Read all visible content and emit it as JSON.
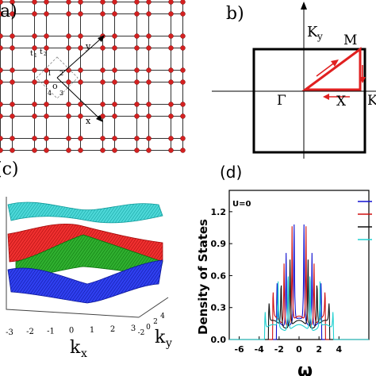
{
  "panel_a": {
    "label": "a)",
    "hopping_1": "t",
    "hopping_1_sub": "1",
    "hopping_2": "t",
    "hopping_2_sub": "2",
    "site_labels": [
      "1",
      "2",
      "3",
      "4"
    ],
    "center_label": "o",
    "axis_x": "x",
    "axis_y": "y",
    "site_color": "#d42020"
  },
  "panel_b": {
    "label": "b)",
    "axis_label": "K",
    "axis_label_sub": "y",
    "point_gamma": "Γ",
    "point_m": "M",
    "point_x": "X",
    "point_k_edge": "K",
    "path_color": "#e02020"
  },
  "panel_c": {
    "label": "(c)",
    "x_axis_label": "k",
    "x_axis_sub": "x",
    "y_axis_label": "k",
    "y_axis_sub": "y",
    "x_ticks": [
      "-3",
      "-2",
      "-1",
      "0",
      "1",
      "2",
      "3"
    ],
    "y_ticks": [
      "-2",
      "0",
      "2",
      "4"
    ],
    "band_colors": [
      "#20c8c8",
      "#e02020",
      "#20a020",
      "#2030e0"
    ]
  },
  "panel_d": {
    "label": "(d)",
    "annotation": "U=0",
    "ylabel": "Density of States",
    "xlabel": "ω"
  },
  "chart_data": {
    "type": "line",
    "ylabel": "Density of States",
    "xlabel": "ω",
    "xlim": [
      -7,
      7
    ],
    "ylim": [
      0,
      1.4
    ],
    "x_ticks": [
      -6,
      -4,
      -2,
      0,
      2,
      4
    ],
    "y_ticks": [
      0.0,
      0.3,
      0.6,
      0.9,
      1.2
    ],
    "y_tick_labels": [
      "0.0",
      "0.3",
      "0.6",
      "0.9",
      "1.2"
    ],
    "series": [
      {
        "color": "#1010d0",
        "peaks": [
          {
            "x": -2.2,
            "h": 0.45
          },
          {
            "x": -1.3,
            "h": 0.9
          },
          {
            "x": -0.5,
            "h": 1.3
          },
          {
            "x": 0.5,
            "h": 1.3
          },
          {
            "x": 1.3,
            "h": 0.9
          },
          {
            "x": 2.2,
            "h": 0.45
          }
        ],
        "edge": 2.2,
        "base": 0.2
      },
      {
        "color": "#d01010",
        "peaks": [
          {
            "x": -2.6,
            "h": 0.32
          },
          {
            "x": -1.5,
            "h": 0.75
          },
          {
            "x": -0.7,
            "h": 1.05
          },
          {
            "x": 0.7,
            "h": 1.05
          },
          {
            "x": 1.5,
            "h": 0.75
          },
          {
            "x": 2.6,
            "h": 0.32
          }
        ],
        "edge": 2.6,
        "base": 0.22
      },
      {
        "color": "#101010",
        "peaks": [
          {
            "x": -3.0,
            "h": 0.25
          },
          {
            "x": -1.8,
            "h": 0.6
          },
          {
            "x": -0.9,
            "h": 0.9
          },
          {
            "x": 0.9,
            "h": 0.9
          },
          {
            "x": 1.8,
            "h": 0.6
          },
          {
            "x": 3.0,
            "h": 0.25
          }
        ],
        "edge": 3.0,
        "base": 0.18
      },
      {
        "color": "#20d0d0",
        "peaks": [
          {
            "x": -3.4,
            "h": 0.2
          },
          {
            "x": -2.1,
            "h": 0.5
          },
          {
            "x": -1.1,
            "h": 0.8
          },
          {
            "x": 1.1,
            "h": 0.8
          },
          {
            "x": 2.1,
            "h": 0.5
          },
          {
            "x": 3.4,
            "h": 0.2
          }
        ],
        "edge": 3.4,
        "base": 0.14
      }
    ]
  }
}
